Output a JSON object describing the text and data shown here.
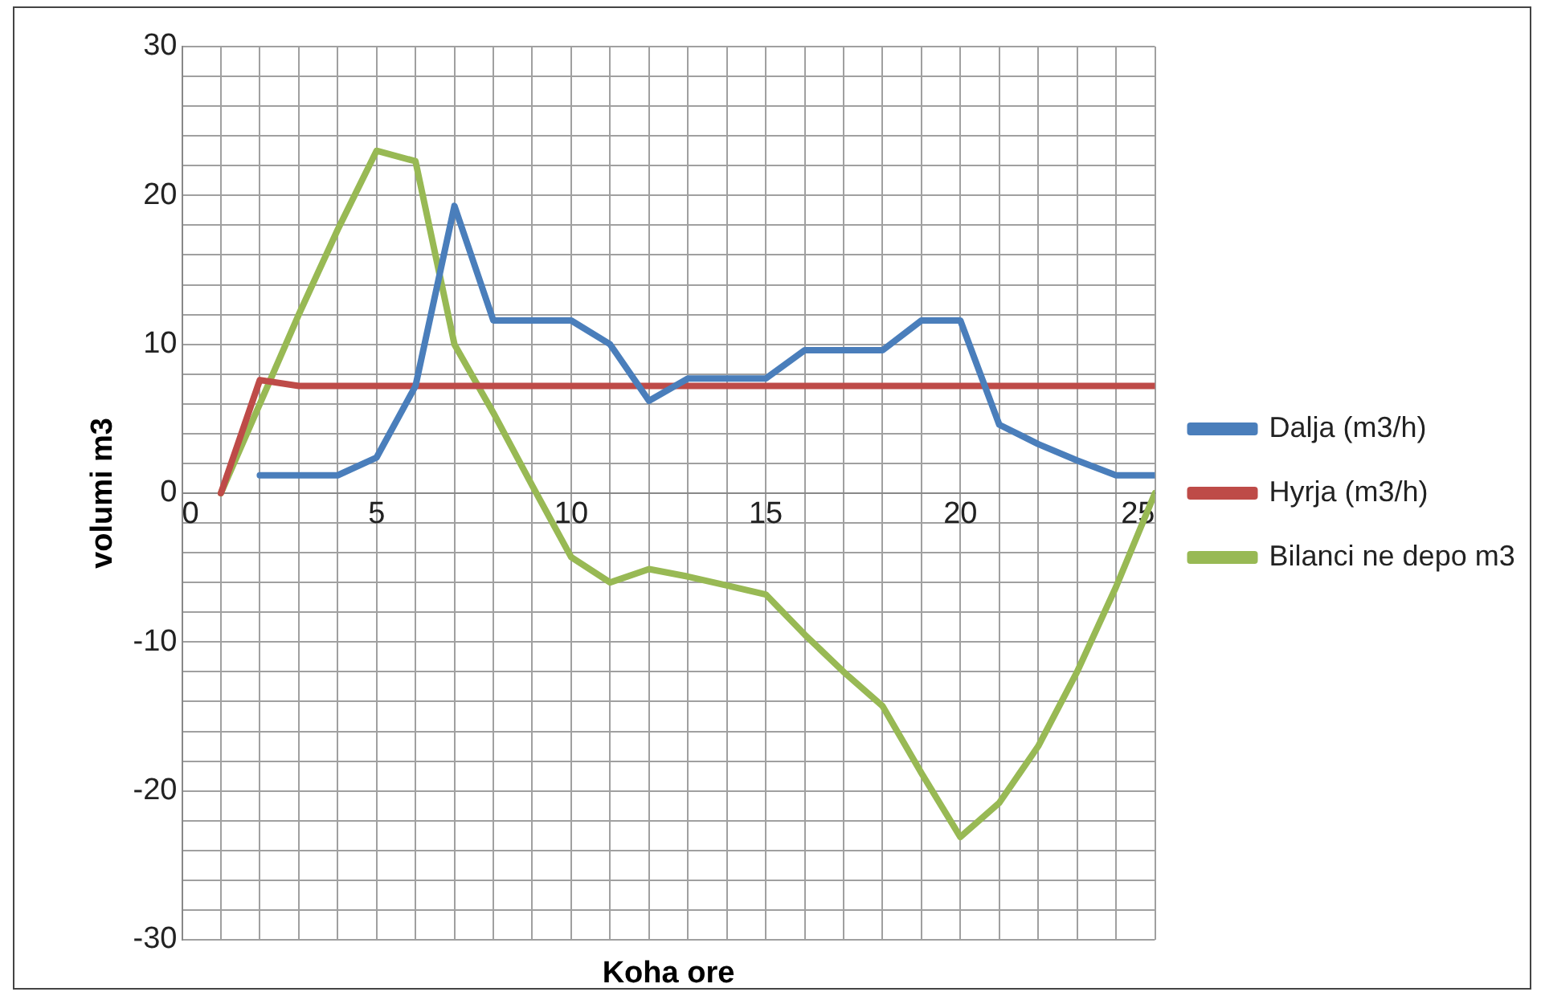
{
  "chart_data": {
    "type": "line",
    "xlabel": "Koha ore",
    "ylabel": "volumi m3",
    "xlim": [
      0,
      25
    ],
    "ylim": [
      -30,
      30
    ],
    "xticks": [
      0,
      {
        "value": 1,
        "label": null
      },
      {
        "value": 2,
        "label": null
      },
      {
        "value": 3,
        "label": null
      },
      {
        "value": 4,
        "label": null
      },
      5,
      {
        "value": 6,
        "label": null
      },
      {
        "value": 7,
        "label": null
      },
      {
        "value": 8,
        "label": null
      },
      {
        "value": 9,
        "label": null
      },
      10,
      {
        "value": 11,
        "label": null
      },
      {
        "value": 12,
        "label": null
      },
      {
        "value": 13,
        "label": null
      },
      {
        "value": 14,
        "label": null
      },
      15,
      {
        "value": 16,
        "label": null
      },
      {
        "value": 17,
        "label": null
      },
      {
        "value": 18,
        "label": null
      },
      {
        "value": 19,
        "label": null
      },
      20,
      {
        "value": 21,
        "label": null
      },
      {
        "value": 22,
        "label": null
      },
      {
        "value": 23,
        "label": null
      },
      {
        "value": 24,
        "label": null
      },
      25
    ],
    "yticks": [
      -30,
      {
        "value": -28,
        "label": null
      },
      {
        "value": -26,
        "label": null
      },
      {
        "value": -24,
        "label": null
      },
      {
        "value": -22,
        "label": null
      },
      -20,
      {
        "value": -18,
        "label": null
      },
      {
        "value": -16,
        "label": null
      },
      {
        "value": -14,
        "label": null
      },
      {
        "value": -12,
        "label": null
      },
      -10,
      {
        "value": -8,
        "label": null
      },
      {
        "value": -6,
        "label": null
      },
      {
        "value": -4,
        "label": null
      },
      {
        "value": -2,
        "label": null
      },
      0,
      {
        "value": 2,
        "label": null
      },
      {
        "value": 4,
        "label": null
      },
      {
        "value": 6,
        "label": null
      },
      {
        "value": 8,
        "label": null
      },
      10,
      {
        "value": 12,
        "label": null
      },
      {
        "value": 14,
        "label": null
      },
      {
        "value": 16,
        "label": null
      },
      {
        "value": 18,
        "label": null
      },
      20,
      {
        "value": 22,
        "label": null
      },
      {
        "value": 24,
        "label": null
      },
      {
        "value": 26,
        "label": null
      },
      {
        "value": 28,
        "label": null
      },
      30
    ],
    "grid": true,
    "legend": "right",
    "marker": "none",
    "line_style": "solid",
    "series": [
      {
        "name": "Dalja (m3/h)",
        "color": "#4a7ebb",
        "x": [
          2,
          3,
          4,
          5,
          6,
          7,
          8,
          9,
          10,
          11,
          12,
          13,
          14,
          15,
          16,
          17,
          18,
          19,
          20,
          21,
          22,
          23,
          24,
          25
        ],
        "values": [
          1.2,
          1.2,
          1.2,
          2.4,
          7.2,
          19.3,
          11.6,
          11.6,
          11.6,
          10,
          6.2,
          7.7,
          7.7,
          7.7,
          9.6,
          9.6,
          9.6,
          11.6,
          11.6,
          4.6,
          3.3,
          2.2,
          1.2,
          1.2
        ]
      },
      {
        "name": "Hyrja (m3/h)",
        "color": "#be4b48",
        "x": [
          1,
          2,
          3,
          4,
          5,
          6,
          7,
          8,
          9,
          10,
          11,
          12,
          13,
          14,
          15,
          16,
          17,
          18,
          19,
          20,
          21,
          22,
          23,
          24,
          25
        ],
        "values": [
          0,
          7.6,
          7.2,
          7.2,
          7.2,
          7.2,
          7.2,
          7.2,
          7.2,
          7.2,
          7.2,
          7.2,
          7.2,
          7.2,
          7.2,
          7.2,
          7.2,
          7.2,
          7.2,
          7.2,
          7.2,
          7.2,
          7.2,
          7.2,
          7.2
        ]
      },
      {
        "name": "Bilanci ne depo m3",
        "color": "#98b954",
        "x": [
          1,
          2,
          3,
          4,
          5,
          6,
          7,
          8,
          9,
          10,
          11,
          12,
          13,
          14,
          15,
          16,
          17,
          18,
          19,
          20,
          21,
          22,
          23,
          24,
          25
        ],
        "values": [
          0,
          6,
          12,
          17.7,
          23,
          22.3,
          10,
          5.4,
          0.5,
          -4.3,
          -6,
          -5.1,
          -5.6,
          -6.2,
          -6.8,
          -9.5,
          -12,
          -14.3,
          -18.8,
          -23.1,
          -20.8,
          -17,
          -12,
          -6.3,
          0
        ]
      }
    ]
  }
}
